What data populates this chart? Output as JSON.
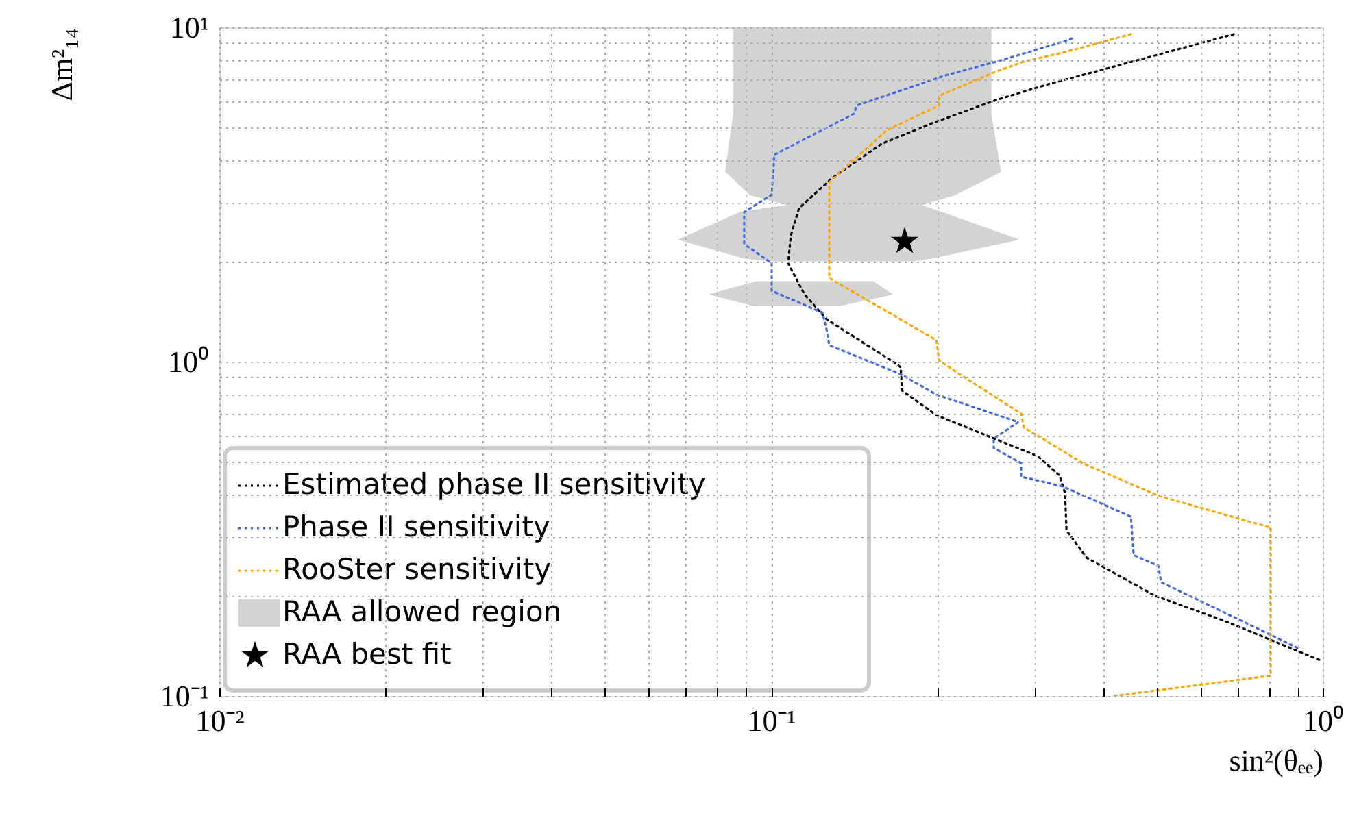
{
  "chart_data": {
    "type": "line",
    "xlabel": "sin²(θₑₑ)",
    "ylabel": "Δm²₁₄",
    "log": "xy",
    "grid": true,
    "legend": "bottom left",
    "xlim": [
      0.01,
      1
    ],
    "ylim": [
      0.1,
      10
    ],
    "xticks": [
      {
        "value": 0.01,
        "label": "10⁻²"
      },
      {
        "value": 0.02,
        "label": null
      },
      {
        "value": 0.03,
        "label": null
      },
      {
        "value": 0.04,
        "label": null
      },
      {
        "value": 0.05,
        "label": null
      },
      {
        "value": 0.06,
        "label": null
      },
      {
        "value": 0.07,
        "label": null
      },
      {
        "value": 0.08,
        "label": null
      },
      {
        "value": 0.09,
        "label": null
      },
      {
        "value": 0.1,
        "label": "10⁻¹"
      },
      {
        "value": 0.2,
        "label": null
      },
      {
        "value": 0.3,
        "label": null
      },
      {
        "value": 0.4,
        "label": null
      },
      {
        "value": 0.5,
        "label": null
      },
      {
        "value": 0.6,
        "label": null
      },
      {
        "value": 0.7,
        "label": null
      },
      {
        "value": 0.8,
        "label": null
      },
      {
        "value": 0.9,
        "label": null
      },
      {
        "value": 1,
        "label": "10⁰"
      }
    ],
    "yticks": [
      {
        "value": 0.1,
        "label": "10⁻¹"
      },
      {
        "value": 0.2,
        "label": null
      },
      {
        "value": 0.3,
        "label": null
      },
      {
        "value": 0.4,
        "label": null
      },
      {
        "value": 0.5,
        "label": null
      },
      {
        "value": 0.6,
        "label": null
      },
      {
        "value": 0.7,
        "label": null
      },
      {
        "value": 0.8,
        "label": null
      },
      {
        "value": 0.9,
        "label": null
      },
      {
        "value": 1,
        "label": "10⁰"
      },
      {
        "value": 2,
        "label": null
      },
      {
        "value": 3,
        "label": null
      },
      {
        "value": 4,
        "label": null
      },
      {
        "value": 5,
        "label": null
      },
      {
        "value": 6,
        "label": null
      },
      {
        "value": 7,
        "label": null
      },
      {
        "value": 8,
        "label": null
      },
      {
        "value": 9,
        "label": null
      },
      {
        "value": 10,
        "label": "10¹"
      }
    ],
    "series": [
      {
        "name": "Estimated phase II sensitivity",
        "line_style": "dotted",
        "color": "#000000",
        "x": [
          0.6897,
          0.3149,
          0.2563,
          0.1959,
          0.1585,
          0.129,
          0.1124,
          0.1086,
          0.1074,
          0.115,
          0.1261,
          0.1679,
          0.1718,
          0.1728,
          0.1993,
          0.3042,
          0.3334,
          0.3412,
          0.3432,
          0.3737,
          0.4978,
          0.6624,
          1.0
        ],
        "values": [
          9.54,
          6.73,
          6.07,
          5.17,
          4.48,
          3.54,
          2.88,
          2.38,
          1.97,
          1.59,
          1.34,
          0.99,
          0.963,
          0.82,
          0.692,
          0.522,
          0.457,
          0.404,
          0.313,
          0.259,
          0.199,
          0.168,
          0.127
        ]
      },
      {
        "name": "Phase II sensitivity",
        "line_style": "dotted",
        "color": "#4169e1",
        "x": [
          0.3512,
          0.3412,
          0.2563,
          0.2074,
          0.143,
          0.1414,
          0.1014,
          0.1003,
          0.0894,
          0.0894,
          0.1003,
          0.1003,
          0.124,
          0.1261,
          0.1275,
          0.1718,
          0.1993,
          0.2808,
          0.2534,
          0.2534,
          0.2841,
          0.2841,
          0.3373,
          0.4491,
          0.4543,
          0.5036,
          0.5094,
          0.7015,
          0.9021
        ],
        "values": [
          9.27,
          9.1,
          7.9,
          7.19,
          5.84,
          5.52,
          4.16,
          3.16,
          2.8,
          2.25,
          1.97,
          1.63,
          1.4,
          1.25,
          1.12,
          0.918,
          0.797,
          0.66,
          0.589,
          0.552,
          0.497,
          0.453,
          0.424,
          0.344,
          0.264,
          0.245,
          0.219,
          0.17,
          0.139
        ]
      },
      {
        "name": "RooSter sensitivity",
        "line_style": "dotted",
        "color": "#ffa500",
        "x": [
          0.4491,
          0.3412,
          0.2873,
          0.2563,
          0.2016,
          0.2016,
          0.1622,
          0.1275,
          0.1275,
          0.1993,
          0.2016,
          0.2197,
          0.2841,
          0.2873,
          0.3674,
          0.5036,
          0.8048,
          0.8048,
          0.4169
        ],
        "values": [
          9.54,
          8.44,
          7.9,
          7.39,
          6.24,
          5.84,
          4.93,
          3.44,
          1.78,
          1.16,
          1.01,
          0.918,
          0.699,
          0.636,
          0.497,
          0.397,
          0.319,
          0.115,
          0.1
        ]
      },
      {
        "name": "RAA allowed region",
        "type": "area",
        "color": "#d3d3d3",
        "x": [
          0.0855,
          0.0855,
          0.0827,
          0.0915,
          0.1074,
          0.0879,
          0.068,
          0.0894,
          0.1003,
          0.1817,
          0.1959,
          0.2808,
          0.2039,
          0.1871,
          0.216,
          0.2608,
          0.2505,
          0.2505
        ],
        "values": [
          10,
          5.5,
          3.7,
          3.16,
          2.94,
          2.8,
          2.32,
          2.04,
          2.0,
          2.0,
          2.04,
          2.32,
          2.8,
          2.94,
          3.16,
          3.7,
          5.5,
          10
        ]
      },
      {
        "type": "area",
        "color": "#d3d3d3",
        "x": [
          0.0945,
          0.0774,
          0.093,
          0.133,
          0.166,
          0.153
        ],
        "values": [
          1.74,
          1.59,
          1.47,
          1.47,
          1.59,
          1.74
        ]
      },
      {
        "name": "RAA best fit",
        "type": "scatter",
        "marker": "star",
        "color": "#000000",
        "x": [
          0.1747
        ],
        "values": [
          2.29
        ]
      }
    ]
  }
}
